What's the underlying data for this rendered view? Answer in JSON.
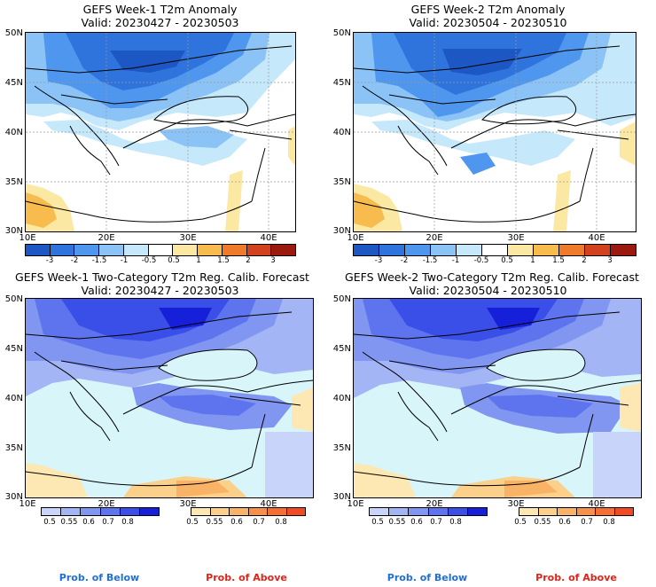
{
  "panels": [
    {
      "title": "GEFS Week-1 T2m Anomaly",
      "valid": "Valid: 20230427 - 20230503"
    },
    {
      "title": "GEFS Week-2 T2m Anomaly",
      "valid": "Valid: 20230504 - 20230510"
    },
    {
      "title": "GEFS Week-1 Two-Category T2m Reg. Calib. Forecast",
      "valid": "Valid: 20230427 - 20230503"
    },
    {
      "title": "GEFS Week-2 Two-Category T2m Reg. Calib. Forecast",
      "valid": "Valid: 20230504 - 20230510"
    }
  ],
  "lat_labels": [
    "50N",
    "45N",
    "40N",
    "35N",
    "30N"
  ],
  "lon_labels": [
    "10E",
    "20E",
    "30E",
    "40E"
  ],
  "anomaly_ticks": [
    "-3",
    "-2",
    "-1.5",
    "-1",
    "-0.5",
    "0.5",
    "1",
    "1.5",
    "2",
    "3"
  ],
  "anomaly_colors": [
    "#1c57c4",
    "#2e74dc",
    "#4f97ee",
    "#8cc3f7",
    "#c6e8fb",
    "#ffffff",
    "#fbe8a2",
    "#f7bb4e",
    "#ee7a2c",
    "#d3421f",
    "#9a1a0f"
  ],
  "prob_ticks": [
    "0.5",
    "0.55",
    "0.6",
    "0.7",
    "0.8"
  ],
  "below_colors": [
    "#c8d4fa",
    "#a4b5f6",
    "#8196f1",
    "#5e74ee",
    "#3a4fe8",
    "#1520d8"
  ],
  "above_colors": [
    "#fde8b4",
    "#fbd08a",
    "#f9b366",
    "#f79048",
    "#f56f32",
    "#f24a22"
  ],
  "legend": {
    "below": "Prob. of Below",
    "above": "Prob. of Above"
  },
  "colors": {
    "below_caption": "#1f6fd8",
    "above_caption": "#e0241a"
  }
}
